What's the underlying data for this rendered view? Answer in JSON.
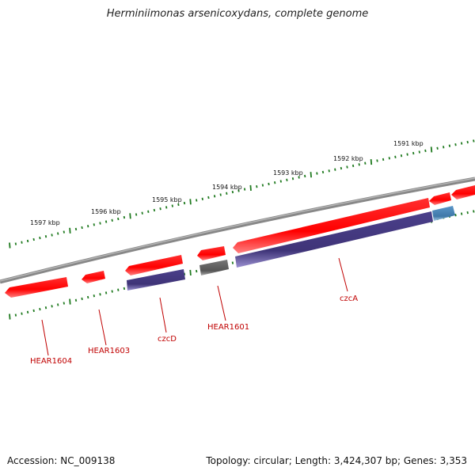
{
  "title": "Herminiimonas arsenicoxydans, complete genome",
  "footer": {
    "accession": "Accession: NC_009138",
    "topology": "Topology: circular; Length: 3,424,307 bp; Genes: 3,353"
  },
  "colors": {
    "backbone": "#888888",
    "tick": "#1f7a1f",
    "gene_red": "#ff0000",
    "gene_blue": "#4a3f8a",
    "gene_gray": "#666666",
    "gene_lightblue": "#4a86b8",
    "label": "#c00000"
  },
  "scale_ticks": [
    {
      "label": "1597 kbp"
    },
    {
      "label": "1596 kbp"
    },
    {
      "label": "1595 kbp"
    },
    {
      "label": "1594 kbp"
    },
    {
      "label": "1593 kbp"
    },
    {
      "label": "1592 kbp"
    },
    {
      "label": "1591 kbp"
    }
  ],
  "gene_labels": [
    {
      "label": "HEAR1604"
    },
    {
      "label": "HEAR1603"
    },
    {
      "label": "czcD"
    },
    {
      "label": "HEAR1601"
    },
    {
      "label": "czcA"
    }
  ]
}
